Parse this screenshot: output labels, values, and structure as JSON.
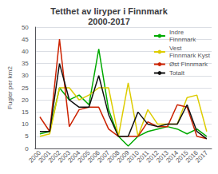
{
  "chart_data": {
    "type": "line",
    "title": "Tetthet av liryper i Finnmark\n2000-2017",
    "ylabel": "Fugler per km2",
    "categories": [
      "2000",
      "2001",
      "2002",
      "2003",
      "2004",
      "2005",
      "2006",
      "2007",
      "2008",
      "2009",
      "2010",
      "2011",
      "2012",
      "2013",
      "2014",
      "2015",
      "2016",
      "2017"
    ],
    "series": [
      {
        "name": "Indre\nFinnmark",
        "color": "#00aa00",
        "values": [
          6,
          7,
          25,
          20,
          22,
          18,
          41,
          16,
          5,
          1,
          5,
          7,
          8,
          9,
          8,
          6,
          8,
          5
        ]
      },
      {
        "name": "Vest\nFinnmark Kyst",
        "color": "#ddcc00",
        "values": [
          5,
          6,
          25,
          25,
          20,
          22,
          25,
          25,
          5,
          27,
          5,
          16,
          10,
          10,
          10,
          21,
          22,
          7
        ]
      },
      {
        "name": "Øst Finnmark",
        "color": "#cc2200",
        "values": [
          13,
          7,
          45,
          9,
          16,
          17,
          17,
          8,
          5,
          5,
          5,
          11,
          9,
          9,
          18,
          17,
          5,
          4
        ]
      },
      {
        "name": "Totalt",
        "color": "#111111",
        "values": [
          7,
          7,
          35,
          20,
          17,
          17,
          30,
          14,
          5,
          5,
          15,
          10,
          9,
          10,
          10,
          18,
          7,
          4
        ]
      }
    ],
    "ylim": [
      0,
      50
    ],
    "yticks": [
      0,
      5,
      10,
      15,
      20,
      25,
      30,
      35,
      40,
      45,
      50
    ],
    "grid": true,
    "legend": "upper right"
  }
}
